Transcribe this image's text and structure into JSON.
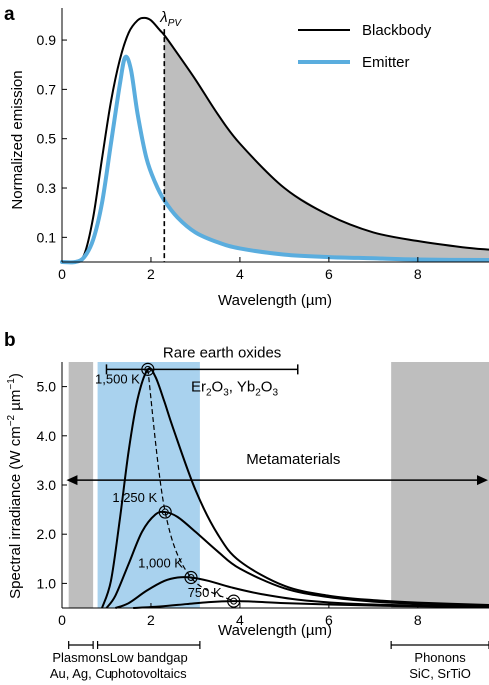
{
  "chart_data": [
    {
      "panel_label": "a",
      "type": "line",
      "xlabel": "Wavelength (µm)",
      "ylabel": "Normalized emission",
      "xlim": [
        0,
        9.6
      ],
      "ylim": [
        0,
        1.03
      ],
      "xticks": [
        "0",
        "2",
        "4",
        "6",
        "8"
      ],
      "xtick_values": [
        0,
        2,
        4,
        6,
        8
      ],
      "yticks": [
        "0.1",
        "0.3",
        "0.5",
        "0.7",
        "0.9"
      ],
      "ytick_values": [
        0.1,
        0.3,
        0.5,
        0.7,
        0.9
      ],
      "lambda_pv": 2.3,
      "lambda_pv_label": "λ",
      "lambda_pv_sub": "PV",
      "series": [
        {
          "name": "Blackbody",
          "color": "#000000",
          "x": [
            0.3,
            0.5,
            0.7,
            0.9,
            1.1,
            1.3,
            1.5,
            1.7,
            1.85,
            2.0,
            2.2,
            2.3,
            2.5,
            3.0,
            3.5,
            4.0,
            5.0,
            6.0,
            7.0,
            8.0,
            9.0,
            9.6
          ],
          "y": [
            0.0,
            0.03,
            0.18,
            0.42,
            0.65,
            0.82,
            0.93,
            0.98,
            0.99,
            0.98,
            0.94,
            0.92,
            0.87,
            0.74,
            0.6,
            0.48,
            0.3,
            0.19,
            0.12,
            0.085,
            0.06,
            0.05
          ]
        },
        {
          "name": "Emitter",
          "color": "#5aadde",
          "x": [
            0.0,
            0.3,
            0.5,
            0.7,
            0.9,
            1.1,
            1.3,
            1.42,
            1.55,
            1.7,
            1.9,
            2.1,
            2.3,
            2.6,
            3.0,
            3.5,
            4.0,
            5.0,
            6.0,
            7.0,
            8.0,
            9.6
          ],
          "y": [
            0.0,
            0.0,
            0.02,
            0.09,
            0.24,
            0.48,
            0.72,
            0.83,
            0.78,
            0.6,
            0.42,
            0.32,
            0.25,
            0.18,
            0.12,
            0.08,
            0.055,
            0.03,
            0.02,
            0.015,
            0.01,
            0.008
          ]
        }
      ],
      "shaded_region": "between blackbody and emitter for wavelength > λPV"
    },
    {
      "panel_label": "b",
      "type": "line",
      "xlabel": "Wavelength (µm)",
      "ylabel": "Spectral irradiance (W cm⁻² µm⁻¹)",
      "xlim": [
        0,
        9.6
      ],
      "ylim": [
        0.5,
        5.5
      ],
      "xticks": [
        "0",
        "2",
        "4",
        "6",
        "8"
      ],
      "xtick_values": [
        0,
        2,
        4,
        6,
        8
      ],
      "yticks": [
        "1.0",
        "2.0",
        "3.0",
        "4.0",
        "5.0"
      ],
      "ytick_values": [
        1.0,
        2.0,
        3.0,
        4.0,
        5.0
      ],
      "series": [
        {
          "name": "1,500 K",
          "color": "#000000",
          "x": [
            0.9,
            1.1,
            1.3,
            1.5,
            1.7,
            1.93,
            2.1,
            2.3,
            2.5,
            3.0,
            3.5,
            4.0,
            5.0,
            6.0,
            7.0,
            8.0,
            9.6
          ],
          "y": [
            0.5,
            1.05,
            2.3,
            3.7,
            4.75,
            5.35,
            5.2,
            4.7,
            4.15,
            2.9,
            2.0,
            1.45,
            0.95,
            0.75,
            0.66,
            0.61,
            0.56
          ]
        },
        {
          "name": "1,250 K",
          "color": "#000000",
          "x": [
            1.0,
            1.2,
            1.5,
            1.8,
            2.1,
            2.32,
            2.6,
            3.0,
            3.5,
            4.0,
            5.0,
            6.0,
            7.0,
            8.0,
            9.6
          ],
          "y": [
            0.5,
            0.75,
            1.4,
            2.05,
            2.4,
            2.45,
            2.35,
            2.05,
            1.65,
            1.3,
            0.9,
            0.72,
            0.63,
            0.59,
            0.55
          ]
        },
        {
          "name": "1,000 K",
          "color": "#000000",
          "x": [
            1.2,
            1.5,
            1.9,
            2.3,
            2.6,
            2.9,
            3.3,
            3.8,
            4.5,
            5.5,
            7.0,
            9.6
          ],
          "y": [
            0.5,
            0.6,
            0.85,
            1.05,
            1.12,
            1.12,
            1.05,
            0.92,
            0.78,
            0.65,
            0.57,
            0.53
          ]
        },
        {
          "name": "750 K",
          "color": "#000000",
          "x": [
            1.6,
            2.2,
            2.8,
            3.3,
            3.86,
            4.3,
            5.0,
            6.0,
            7.5,
            9.6
          ],
          "y": [
            0.5,
            0.53,
            0.58,
            0.62,
            0.64,
            0.63,
            0.6,
            0.57,
            0.54,
            0.52
          ]
        }
      ],
      "peak_points": {
        "x": [
          1.93,
          2.32,
          2.9,
          3.86
        ],
        "y": [
          5.35,
          2.45,
          1.12,
          0.64
        ]
      },
      "shaded_regions": [
        {
          "label": "Plasmons",
          "x0": 0.15,
          "x1": 0.7,
          "color": "#bebebe"
        },
        {
          "label": "Low bandgap",
          "x0": 0.8,
          "x1": 3.1,
          "color": "#a9d2ee"
        },
        {
          "label": "Phonons",
          "x0": 7.4,
          "x1": 9.6,
          "color": "#bebebe"
        }
      ],
      "annotations": {
        "rare_earth": "Rare earth oxides",
        "rare_earth_range": [
          1.0,
          5.3
        ],
        "rare_earth_y": 5.35,
        "oxide_formula_parts": [
          "Er",
          "2",
          "O",
          "3",
          ", Yb",
          "2",
          "O",
          "3"
        ],
        "metamaterials": "Metamaterials",
        "metamaterials_range": [
          0.1,
          9.6
        ],
        "metamaterials_y": 3.1
      },
      "bottom_labels": {
        "plasmons": {
          "line1": "Plasmons",
          "line2": "Au, Ag, Cu",
          "range": [
            0.15,
            0.7
          ]
        },
        "low_bandgap": {
          "line1": "Low bandgap",
          "line2": "photovoltaics",
          "range": [
            0.8,
            3.1
          ]
        },
        "phonons": {
          "line1": "Phonons",
          "line2": "SiC, SrTiO",
          "range": [
            7.4,
            9.6
          ]
        }
      }
    }
  ]
}
